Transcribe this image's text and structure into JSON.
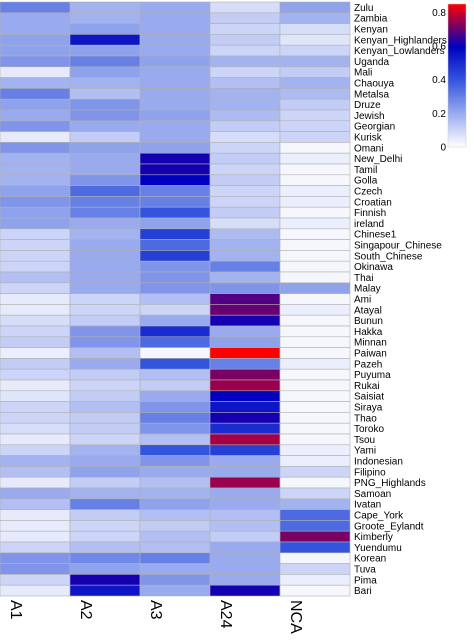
{
  "chart_data": {
    "type": "heatmap",
    "columns": [
      "A1",
      "A2",
      "A3",
      "A24",
      "NCA"
    ],
    "rows": [
      "Zulu",
      "Zambia",
      "Kenyan",
      "Kenyan_Highlanders",
      "Kenyan_Lowlanders",
      "Uganda",
      "Mali",
      "Chaouya",
      "Metalsa",
      "Druze",
      "Jewish",
      "Georgian",
      "Kurisk",
      "Omani",
      "New_Delhi",
      "Tamil",
      "Golla",
      "Czech",
      "Croatian",
      "Finnish",
      "ireland",
      "Chinese1",
      "Singapour_Chinese",
      "South_Chinese",
      "Okinawa",
      "Thai",
      "Malay",
      "Ami",
      "Atayal",
      "Bunun",
      "Hakka",
      "Minnan",
      "Paiwan",
      "Pazeh",
      "Puyuma",
      "Rukai",
      "Saisiat",
      "Siraya",
      "Thao",
      "Toroko",
      "Tsou",
      "Yami",
      "Indonesian",
      "Filipino",
      "PNG_Highlands",
      "Samoan",
      "Ivatan",
      "Cape_York",
      "Groote_Eylandt",
      "Kimberly",
      "Yuendumu",
      "Korean",
      "Tuva",
      "Pima",
      "Bari"
    ],
    "values": [
      [
        0.3,
        0.18,
        0.2,
        0.08,
        0.22
      ],
      [
        0.2,
        0.18,
        0.2,
        0.12,
        0.18
      ],
      [
        0.2,
        0.22,
        0.2,
        0.1,
        0.08
      ],
      [
        0.22,
        0.55,
        0.2,
        0.12,
        0.06
      ],
      [
        0.22,
        0.22,
        0.2,
        0.1,
        0.1
      ],
      [
        0.25,
        0.3,
        0.22,
        0.18,
        0.18
      ],
      [
        0.05,
        0.22,
        0.2,
        0.1,
        0.12
      ],
      [
        0.18,
        0.18,
        0.2,
        0.15,
        0.18
      ],
      [
        0.3,
        0.15,
        0.2,
        0.18,
        0.16
      ],
      [
        0.22,
        0.25,
        0.2,
        0.18,
        0.12
      ],
      [
        0.2,
        0.25,
        0.22,
        0.16,
        0.1
      ],
      [
        0.25,
        0.2,
        0.2,
        0.12,
        0.1
      ],
      [
        0.05,
        0.12,
        0.2,
        0.08,
        0.1
      ],
      [
        0.25,
        0.22,
        0.22,
        0.1,
        0.02
      ],
      [
        0.18,
        0.2,
        0.62,
        0.12,
        0.04
      ],
      [
        0.18,
        0.2,
        0.62,
        0.1,
        0.02
      ],
      [
        0.18,
        0.25,
        0.6,
        0.12,
        0.02
      ],
      [
        0.22,
        0.35,
        0.3,
        0.1,
        0.04
      ],
      [
        0.25,
        0.3,
        0.3,
        0.1,
        0.04
      ],
      [
        0.22,
        0.3,
        0.4,
        0.12,
        0.02
      ],
      [
        0.22,
        0.2,
        0.22,
        0.08,
        0.04
      ],
      [
        0.1,
        0.18,
        0.45,
        0.16,
        0.02
      ],
      [
        0.1,
        0.2,
        0.35,
        0.18,
        0.02
      ],
      [
        0.1,
        0.2,
        0.45,
        0.18,
        0.02
      ],
      [
        0.1,
        0.2,
        0.25,
        0.3,
        0.02
      ],
      [
        0.15,
        0.2,
        0.25,
        0.18,
        0.02
      ],
      [
        0.1,
        0.2,
        0.25,
        0.25,
        0.22
      ],
      [
        0.05,
        0.1,
        0.15,
        0.68,
        0.02
      ],
      [
        0.05,
        0.1,
        0.1,
        0.7,
        0.04
      ],
      [
        0.08,
        0.12,
        0.2,
        0.62,
        0.02
      ],
      [
        0.1,
        0.25,
        0.5,
        0.2,
        0.02
      ],
      [
        0.12,
        0.25,
        0.35,
        0.22,
        0.02
      ],
      [
        0.04,
        0.15,
        0.02,
        0.85,
        0.02
      ],
      [
        0.12,
        0.2,
        0.4,
        0.3,
        0.04
      ],
      [
        0.1,
        0.12,
        0.15,
        0.72,
        0.02
      ],
      [
        0.05,
        0.1,
        0.12,
        0.75,
        0.02
      ],
      [
        0.06,
        0.12,
        0.2,
        0.6,
        0.02
      ],
      [
        0.1,
        0.15,
        0.25,
        0.55,
        0.02
      ],
      [
        0.1,
        0.12,
        0.3,
        0.62,
        0.02
      ],
      [
        0.08,
        0.12,
        0.25,
        0.5,
        0.02
      ],
      [
        0.05,
        0.1,
        0.15,
        0.76,
        0.02
      ],
      [
        0.1,
        0.18,
        0.4,
        0.45,
        0.04
      ],
      [
        0.18,
        0.2,
        0.25,
        0.2,
        0.04
      ],
      [
        0.15,
        0.22,
        0.2,
        0.2,
        0.1
      ],
      [
        0.05,
        0.12,
        0.15,
        0.75,
        0.02
      ],
      [
        0.2,
        0.18,
        0.18,
        0.2,
        0.1
      ],
      [
        0.15,
        0.3,
        0.22,
        0.2,
        0.18
      ],
      [
        0.05,
        0.12,
        0.15,
        0.15,
        0.35
      ],
      [
        0.05,
        0.1,
        0.12,
        0.15,
        0.35
      ],
      [
        0.05,
        0.1,
        0.15,
        0.12,
        0.72
      ],
      [
        0.1,
        0.15,
        0.15,
        0.2,
        0.4
      ],
      [
        0.25,
        0.28,
        0.3,
        0.2,
        0.02
      ],
      [
        0.25,
        0.22,
        0.2,
        0.2,
        0.1
      ],
      [
        0.1,
        0.62,
        0.25,
        0.2,
        0.04
      ],
      [
        0.05,
        0.55,
        0.2,
        0.62,
        0.02
      ]
    ],
    "colorbar": {
      "min": 0,
      "max": 0.85,
      "ticks": [
        0,
        0.2,
        0.4,
        0.6,
        0.8
      ],
      "tick_labels": [
        "0",
        "0.2",
        "0.4",
        "0.6",
        "0.8"
      ]
    },
    "colorscale": [
      "#ffffff",
      "#3355dd",
      "#0000c0",
      "#ff0000"
    ],
    "grid": true
  }
}
